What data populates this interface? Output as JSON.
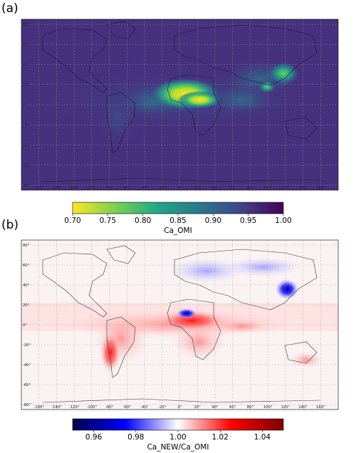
{
  "panels": [
    {
      "label": "(a)",
      "colorbar": {
        "label": "Ca_OMI",
        "ticks": [
          "0.70",
          "0.75",
          "0.80",
          "0.85",
          "0.90",
          "0.95",
          "1.00"
        ],
        "colormap": "viridis_r",
        "colors": [
          "#fde725",
          "#7ad151",
          "#22a884",
          "#2a788e",
          "#414487",
          "#440154"
        ]
      }
    },
    {
      "label": "(b)",
      "colorbar": {
        "label": "Ca_NEW/Ca_OMI",
        "ticks": [
          "0.96",
          "0.98",
          "1.00",
          "1.02",
          "1.04"
        ],
        "colormap": "seismic",
        "colors": [
          "#00004c",
          "#0000ff",
          "#ffffff",
          "#ff0000",
          "#7f0000"
        ]
      }
    }
  ],
  "map_grid": {
    "lon_ticks": [
      "-160°",
      "-140°",
      "-120°",
      "-100°",
      "-80°",
      "-60°",
      "-40°",
      "-20°",
      "0°",
      "20°",
      "40°",
      "60°",
      "80°",
      "100°",
      "120°",
      "140°",
      "160°"
    ],
    "lat_ticks": [
      "80°",
      "60°",
      "40°",
      "20°",
      "0°",
      "-20°",
      "-40°",
      "-60°",
      "-80°"
    ]
  }
}
